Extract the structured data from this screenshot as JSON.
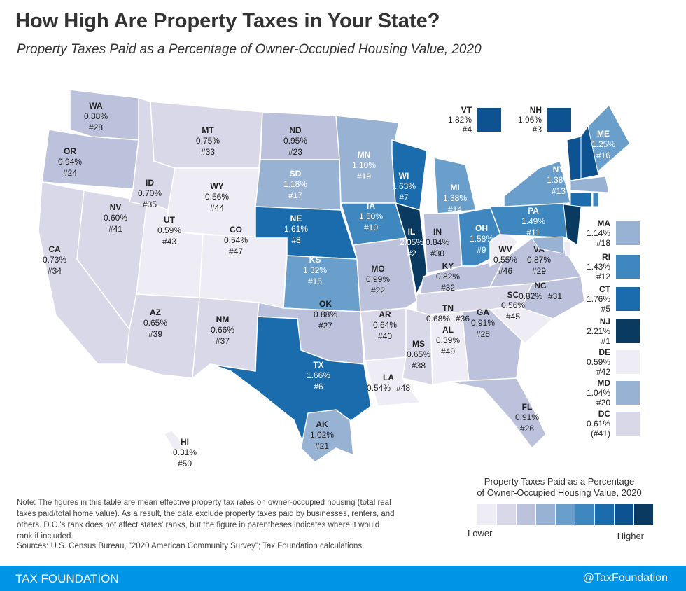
{
  "title": "How High Are Property Taxes in Your State?",
  "subtitle": "Property Taxes Paid as a Percentage of Owner-Occupied Housing Value, 2020",
  "states": [
    {
      "abbr": "WA",
      "value": "0.88%",
      "rank": "#28"
    },
    {
      "abbr": "OR",
      "value": "0.94%",
      "rank": "#24"
    },
    {
      "abbr": "CA",
      "value": "0.73%",
      "rank": "#34"
    },
    {
      "abbr": "NV",
      "value": "0.60%",
      "rank": "#41"
    },
    {
      "abbr": "ID",
      "value": "0.70%",
      "rank": "#35"
    },
    {
      "abbr": "MT",
      "value": "0.75%",
      "rank": "#33"
    },
    {
      "abbr": "WY",
      "value": "0.56%",
      "rank": "#44"
    },
    {
      "abbr": "UT",
      "value": "0.59%",
      "rank": "#43"
    },
    {
      "abbr": "CO",
      "value": "0.54%",
      "rank": "#47"
    },
    {
      "abbr": "AZ",
      "value": "0.65%",
      "rank": "#39"
    },
    {
      "abbr": "NM",
      "value": "0.66%",
      "rank": "#37"
    },
    {
      "abbr": "ND",
      "value": "0.95%",
      "rank": "#23"
    },
    {
      "abbr": "SD",
      "value": "1.18%",
      "rank": "#17"
    },
    {
      "abbr": "NE",
      "value": "1.61%",
      "rank": "#8"
    },
    {
      "abbr": "KS",
      "value": "1.32%",
      "rank": "#15"
    },
    {
      "abbr": "OK",
      "value": "0.88%",
      "rank": "#27"
    },
    {
      "abbr": "TX",
      "value": "1.66%",
      "rank": "#6"
    },
    {
      "abbr": "MN",
      "value": "1.10%",
      "rank": "#19"
    },
    {
      "abbr": "IA",
      "value": "1.50%",
      "rank": "#10"
    },
    {
      "abbr": "MO",
      "value": "0.99%",
      "rank": "#22"
    },
    {
      "abbr": "AR",
      "value": "0.64%",
      "rank": "#40"
    },
    {
      "abbr": "LA",
      "value": "0.54%",
      "rank": "#48"
    },
    {
      "abbr": "WI",
      "value": "1.63%",
      "rank": "#7"
    },
    {
      "abbr": "IL",
      "value": "2.05%",
      "rank": "#2"
    },
    {
      "abbr": "MI",
      "value": "1.38%",
      "rank": "#14"
    },
    {
      "abbr": "IN",
      "value": "0.84%",
      "rank": "#30"
    },
    {
      "abbr": "OH",
      "value": "1.58%",
      "rank": "#9"
    },
    {
      "abbr": "KY",
      "value": "0.82%",
      "rank": "#32"
    },
    {
      "abbr": "TN",
      "value": "0.68%",
      "rank": "#36"
    },
    {
      "abbr": "MS",
      "value": "0.65%",
      "rank": "#38"
    },
    {
      "abbr": "AL",
      "value": "0.39%",
      "rank": "#49"
    },
    {
      "abbr": "GA",
      "value": "0.91%",
      "rank": "#25"
    },
    {
      "abbr": "FL",
      "value": "0.91%",
      "rank": "#26"
    },
    {
      "abbr": "SC",
      "value": "0.56%",
      "rank": "#45"
    },
    {
      "abbr": "NC",
      "value": "0.82%",
      "rank": "#31"
    },
    {
      "abbr": "VA",
      "value": "0.87%",
      "rank": "#29"
    },
    {
      "abbr": "WV",
      "value": "0.55%",
      "rank": "#46"
    },
    {
      "abbr": "PA",
      "value": "1.49%",
      "rank": "#11"
    },
    {
      "abbr": "NY",
      "value": "1.38%",
      "rank": "#13"
    },
    {
      "abbr": "ME",
      "value": "1.25%",
      "rank": "#16"
    },
    {
      "abbr": "AK",
      "value": "1.02%",
      "rank": "#21"
    },
    {
      "abbr": "HI",
      "value": "0.31%",
      "rank": "#50"
    }
  ],
  "callouts": [
    {
      "abbr": "VT",
      "value": "1.82%",
      "rank": "#4"
    },
    {
      "abbr": "NH",
      "value": "1.96%",
      "rank": "#3"
    },
    {
      "abbr": "MA",
      "value": "1.14%",
      "rank": "#18"
    },
    {
      "abbr": "RI",
      "value": "1.43%",
      "rank": "#12"
    },
    {
      "abbr": "CT",
      "value": "1.76%",
      "rank": "#5"
    },
    {
      "abbr": "NJ",
      "value": "2.21%",
      "rank": "#1"
    },
    {
      "abbr": "DE",
      "value": "0.59%",
      "rank": "#42"
    },
    {
      "abbr": "MD",
      "value": "1.04%",
      "rank": "#20"
    },
    {
      "abbr": "DC",
      "value": "0.61%",
      "rank": "(#41)"
    }
  ],
  "legend": {
    "title_line1": "Property Taxes Paid as a Percentage",
    "title_line2": "of Owner-Occupied Housing Value, 2020",
    "low_label": "Lower",
    "high_label": "Higher",
    "colors": [
      "#eeedf5",
      "#d9d8e9",
      "#bcc2dc",
      "#98b2d4",
      "#6a9fcb",
      "#3f87bf",
      "#1a6cad",
      "#0d5391",
      "#0b3a60"
    ],
    "thresholds": [
      0.6,
      0.8,
      1.0,
      1.2,
      1.4,
      1.6,
      1.8,
      2.0
    ]
  },
  "note": "Note: The figures in this table are mean effective property tax rates on owner-occupied housing (total real taxes paid/total home value). As a result, the data exclude property taxes paid by businesses, renters, and others. D.C.'s rank does not affect states' ranks, but the figure in parentheses indicates where it would rank if included.",
  "sources": "Sources: U.S. Census Bureau, \"2020 American Community Survey\"; Tax Foundation calculations.",
  "footer": {
    "brand": "TAX FOUNDATION",
    "handle": "@TaxFoundation"
  }
}
